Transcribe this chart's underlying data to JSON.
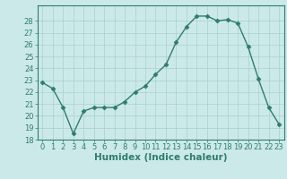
{
  "x": [
    0,
    1,
    2,
    3,
    4,
    5,
    6,
    7,
    8,
    9,
    10,
    11,
    12,
    13,
    14,
    15,
    16,
    17,
    18,
    19,
    20,
    21,
    22,
    23
  ],
  "y": [
    22.8,
    22.3,
    20.7,
    18.5,
    20.4,
    20.7,
    20.7,
    20.7,
    21.2,
    22.0,
    22.5,
    23.5,
    24.3,
    26.2,
    27.5,
    28.4,
    28.4,
    28.0,
    28.1,
    27.8,
    25.8,
    23.1,
    20.7,
    19.3
  ],
  "xlabel": "Humidex (Indice chaleur)",
  "ylim": [
    18,
    29
  ],
  "xlim": [
    -0.5,
    23.5
  ],
  "yticks": [
    18,
    19,
    20,
    21,
    22,
    23,
    24,
    25,
    26,
    27,
    28
  ],
  "xticks": [
    0,
    1,
    2,
    3,
    4,
    5,
    6,
    7,
    8,
    9,
    10,
    11,
    12,
    13,
    14,
    15,
    16,
    17,
    18,
    19,
    20,
    21,
    22,
    23
  ],
  "xtick_labels": [
    "0",
    "1",
    "2",
    "3",
    "4",
    "5",
    "6",
    "7",
    "8",
    "9",
    "10",
    "11",
    "12",
    "13",
    "14",
    "15",
    "16",
    "17",
    "18",
    "19",
    "20",
    "21",
    "22",
    "23"
  ],
  "line_color": "#2e7d6e",
  "marker": "D",
  "marker_size": 2.5,
  "bg_color": "#cce9e9",
  "grid_color": "#aed4d4",
  "tick_color": "#2e7d6e",
  "label_color": "#2e7d6e",
  "font_size_tick": 6,
  "font_size_xlabel": 7.5
}
